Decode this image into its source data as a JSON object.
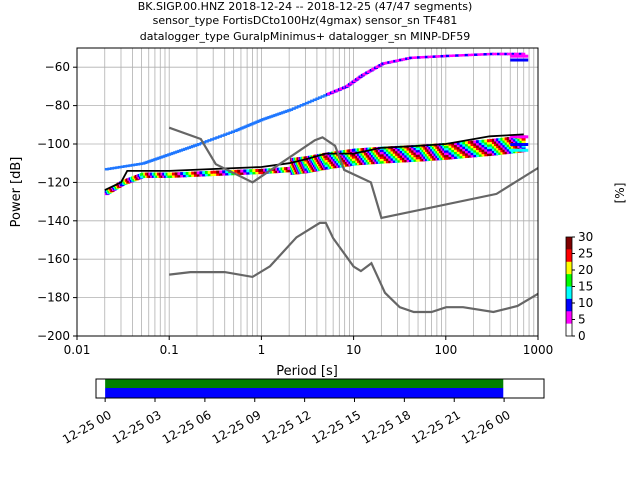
{
  "title_lines": [
    "BK.SIGP.00.HNZ   2018-12-24 -- 2018-12-25  (47/47 segments)",
    "sensor_type FortisDCto100Hz(4gmax) sensor_sn TF481",
    "datalogger_type GuralpMinimus+ datalogger_sn MINP-DF59"
  ],
  "chart_data": [
    {
      "type": "heatmap",
      "name": "ppsd",
      "xlabel": "Period [s]",
      "ylabel": "Power [dB]",
      "x_scale": "log",
      "xlim": [
        0.01,
        1000
      ],
      "ylim": [
        -200,
        -50
      ],
      "x_tick_values": [
        0.01,
        0.1,
        1,
        10,
        100,
        1000
      ],
      "x_tick_labels": [
        "0.01",
        "0.1",
        "1",
        "10",
        "100",
        "1000"
      ],
      "y_tick_values": [
        -200,
        -180,
        -160,
        -140,
        -120,
        -100,
        -80,
        -60
      ],
      "y_tick_labels": [
        "−200",
        "−180",
        "−160",
        "−140",
        "−120",
        "−100",
        "−80",
        "−60"
      ],
      "grid": true,
      "colorbar": {
        "label": "[%]",
        "range": [
          0,
          30
        ],
        "ticks": [
          0,
          5,
          10,
          15,
          20,
          25,
          30
        ],
        "colors": [
          "#ffffff",
          "#ff00ff",
          "#0000ff",
          "#00ffff",
          "#00ff00",
          "#ffff00",
          "#ff0000",
          "#800000"
        ]
      },
      "series": [
        {
          "name": "upper_scatter",
          "color": "#1f77ff",
          "x": [
            0.02,
            0.05,
            0.1,
            0.2,
            0.5,
            1,
            2,
            5,
            8,
            12,
            20,
            40,
            100,
            300,
            700
          ],
          "y": [
            -113,
            -110,
            -105,
            -100,
            -93,
            -87,
            -82,
            -74,
            -70,
            -64,
            -58,
            -55,
            -54,
            -53,
            -53
          ]
        },
        {
          "name": "ppsd_main",
          "color": "#ff0000",
          "x": [
            0.02,
            0.03,
            0.05,
            0.1,
            0.3,
            1,
            2,
            3,
            5,
            10,
            20,
            50,
            100,
            300,
            700
          ],
          "y": [
            -125,
            -120,
            -116,
            -116,
            -115,
            -114,
            -113,
            -112,
            -110,
            -108,
            -107,
            -106,
            -105,
            -103,
            -101
          ]
        },
        {
          "name": "median",
          "color": "#000000",
          "x": [
            0.02,
            0.03,
            0.035,
            0.1,
            0.3,
            1,
            2,
            3,
            5,
            10,
            20,
            50,
            100,
            300,
            700
          ],
          "y": [
            -124,
            -120,
            -114,
            -114,
            -113,
            -112,
            -110,
            -108,
            -105,
            -105,
            -102,
            -101,
            -100,
            -96,
            -95
          ]
        },
        {
          "name": "nhnm",
          "color": "#666666",
          "x": [
            0.1,
            0.22,
            0.32,
            0.8,
            3.8,
            4.6,
            6.3,
            7.9,
            15.4,
            20,
            354.8,
            1000
          ],
          "y": [
            -91.5,
            -97.4,
            -110.5,
            -120,
            -98,
            -96.5,
            -101,
            -113.5,
            -120,
            -138.5,
            -126,
            -112.5
          ]
        },
        {
          "name": "nlnm",
          "color": "#666666",
          "x": [
            0.1,
            0.17,
            0.4,
            0.8,
            1.24,
            2.4,
            4.3,
            5,
            6,
            10,
            12,
            15.6,
            21.9,
            31.6,
            45,
            70,
            101,
            154,
            328,
            600,
            1000
          ],
          "y": [
            -168,
            -166.7,
            -166.7,
            -169.2,
            -163.7,
            -148.6,
            -141.1,
            -141.1,
            -149,
            -163.8,
            -166.2,
            -162.1,
            -177.5,
            -185,
            -187.5,
            -187.5,
            -185,
            -185,
            -187.5,
            -184.4,
            -178
          ]
        }
      ]
    },
    {
      "type": "bar",
      "name": "coverage",
      "x_tick_labels": [
        "12-25 00",
        "12-25 03",
        "12-25 06",
        "12-25 09",
        "12-25 12",
        "12-25 15",
        "12-25 18",
        "12-25 21",
        "12-26 00"
      ],
      "xlim_hours": [
        -0.55,
        26.4
      ],
      "segments": [
        {
          "name": "available",
          "color": "#008000",
          "start_hour": 0,
          "end_hour": 23.95
        },
        {
          "name": "used",
          "color": "#0000ff",
          "start_hour": 0,
          "end_hour": 23.95
        }
      ]
    }
  ]
}
